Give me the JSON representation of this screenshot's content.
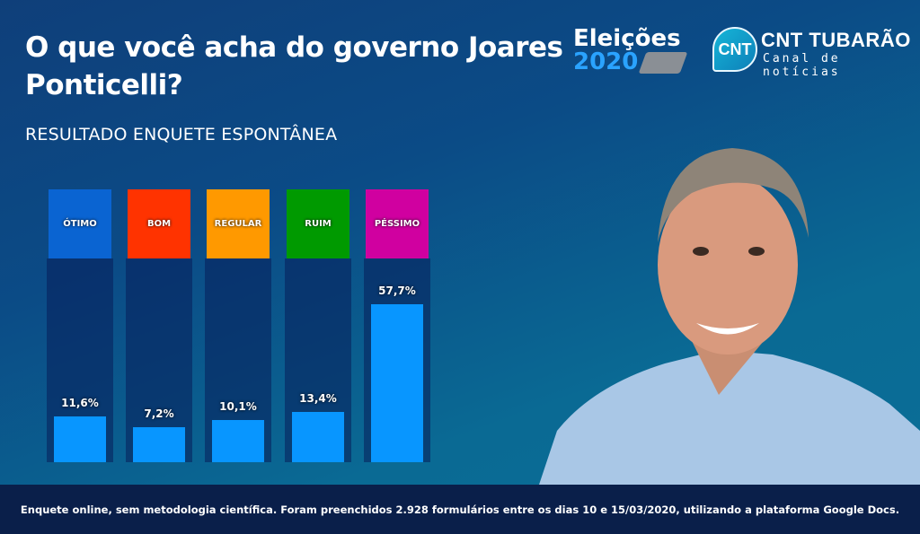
{
  "header": {
    "title": "O que você acha do governo Joares Ponticelli?",
    "subtitle": "RESULTADO ENQUETE ESPONTÂNEA"
  },
  "logos": {
    "eleicoes_line1": "Eleições",
    "eleicoes_line2": "2020",
    "cnt_badge": "CNT",
    "cnt_name": "CNT TUBARÃO",
    "cnt_tagline": "Canal de notícias"
  },
  "chart_data": {
    "type": "bar",
    "categories": [
      "ÓTIMO",
      "BOM",
      "REGULAR",
      "RUIM",
      "PÉSSIMO"
    ],
    "values": [
      11.6,
      7.2,
      10.1,
      13.4,
      57.7
    ],
    "value_labels": [
      "11,6%",
      "7,2%",
      "10,1%",
      "13,4%",
      "57,7%"
    ],
    "category_colors": [
      "#0a64d2",
      "#ff3300",
      "#ff9900",
      "#009a00",
      "#d000a0"
    ],
    "bar_color": "#0896ff",
    "unit": "%"
  },
  "footer": {
    "note": "Enquete online, sem metodologia científica. Foram preenchidos 2.928 formulários entre os dias 10 e 15/03/2020, utilizando a plataforma Google Docs."
  }
}
